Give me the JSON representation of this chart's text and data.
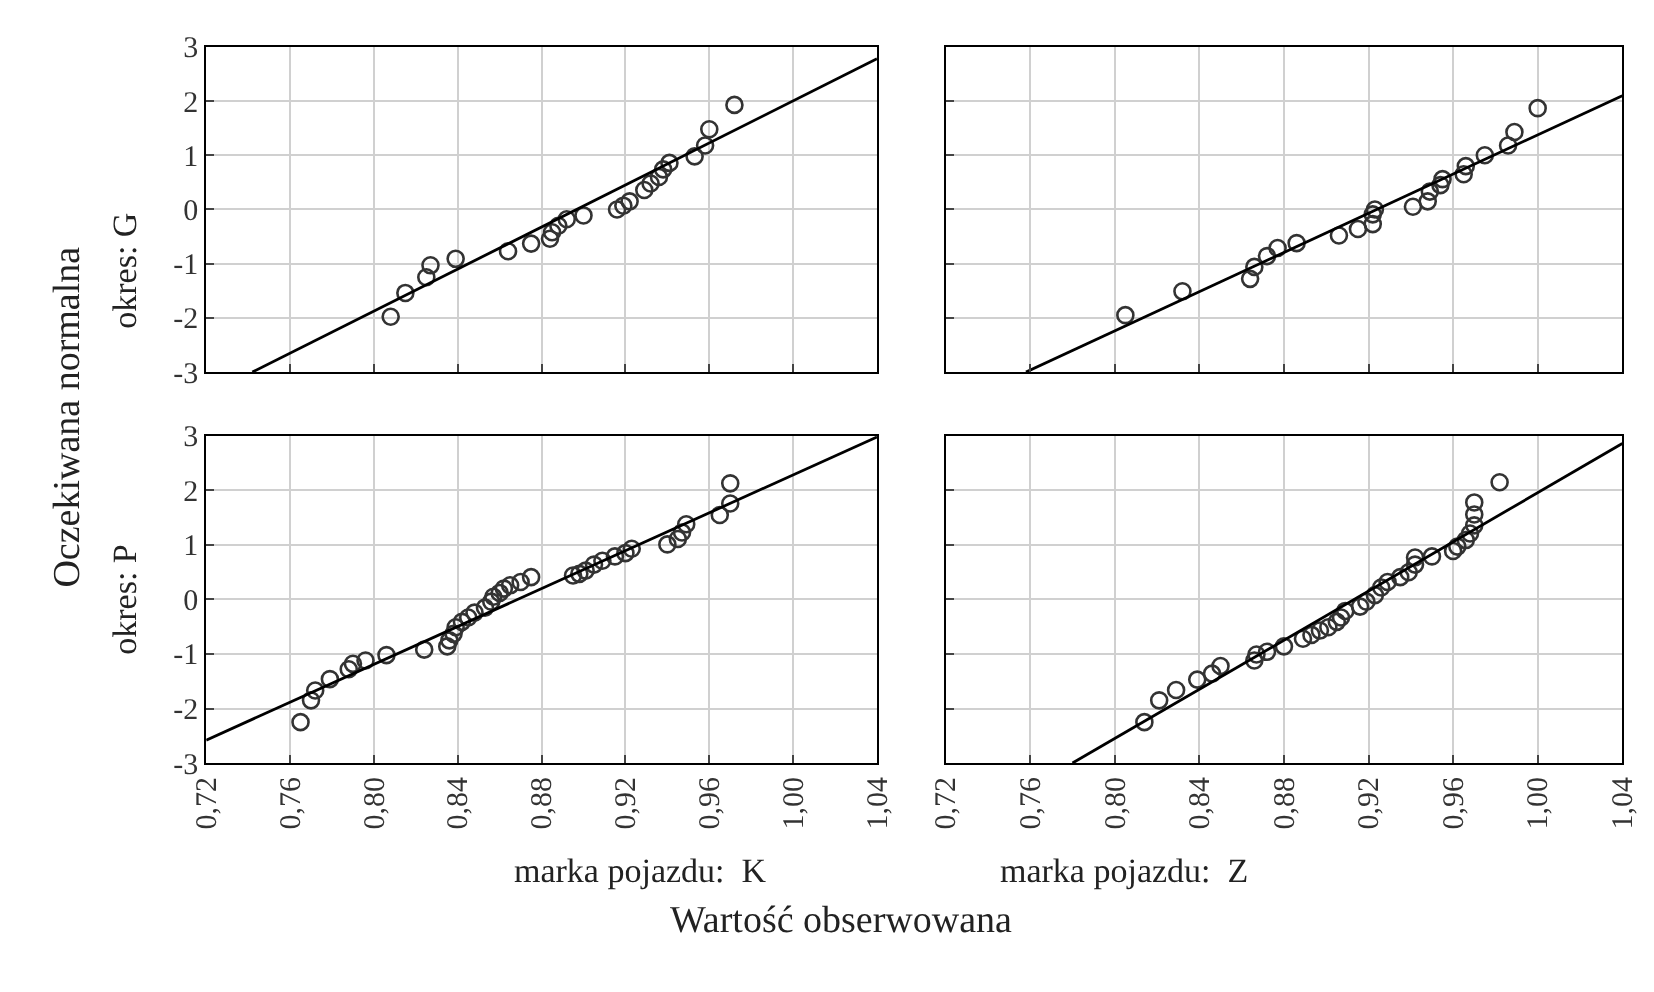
{
  "chart_data": [
    {
      "type": "scatter",
      "ylabel": "okres: G",
      "annotations": [
        "Oczekiwana normalna",
        "Wartość obserwowana"
      ],
      "xlim": [
        0.72,
        1.04
      ],
      "ylim": [
        -3,
        3
      ],
      "xticks": [
        {
          "value": 0.72,
          "label": null
        },
        {
          "value": 0.76,
          "label": null
        },
        {
          "value": 0.8,
          "label": null
        },
        {
          "value": 0.84,
          "label": null
        },
        {
          "value": 0.88,
          "label": null
        },
        {
          "value": 0.92,
          "label": null
        },
        {
          "value": 0.96,
          "label": null
        },
        {
          "value": 1.0,
          "label": null
        },
        {
          "value": 1.04,
          "label": null
        }
      ],
      "yticks": [
        -3,
        -2,
        -1,
        0,
        1,
        2,
        3
      ],
      "tick_labels": "y",
      "grid": true,
      "line_style": "solid",
      "series": [
        {
          "marker": "circle",
          "color": "#333333",
          "x": [
            0.808,
            0.815,
            0.825,
            0.827,
            0.839,
            0.864,
            0.875,
            0.884,
            0.885,
            0.888,
            0.892,
            0.9,
            0.916,
            0.919,
            0.922,
            0.929,
            0.932,
            0.936,
            0.938,
            0.941,
            0.953,
            0.958,
            0.96,
            0.972
          ],
          "values": [
            -1.98,
            -1.54,
            -1.25,
            -1.03,
            -0.91,
            -0.77,
            -0.63,
            -0.54,
            -0.42,
            -0.3,
            -0.18,
            -0.11,
            0.0,
            0.07,
            0.15,
            0.36,
            0.48,
            0.6,
            0.74,
            0.86,
            0.98,
            1.18,
            1.48,
            1.93
          ]
        },
        {
          "type": "line",
          "marker": "none",
          "color": "#000000",
          "x": [
            0.742,
            1.04
          ],
          "values": [
            -3,
            2.78
          ]
        }
      ]
    },
    {
      "type": "scatter",
      "xlim": [
        0.72,
        1.04
      ],
      "ylim": [
        -3,
        3
      ],
      "xticks": [
        {
          "value": 0.72,
          "label": null
        },
        {
          "value": 0.76,
          "label": null
        },
        {
          "value": 0.8,
          "label": null
        },
        {
          "value": 0.84,
          "label": null
        },
        {
          "value": 0.88,
          "label": null
        },
        {
          "value": 0.92,
          "label": null
        },
        {
          "value": 0.96,
          "label": null
        },
        {
          "value": 1.0,
          "label": null
        },
        {
          "value": 1.04,
          "label": null
        }
      ],
      "yticks": [
        -3,
        -2,
        -1,
        0,
        1,
        2,
        3
      ],
      "tick_labels": false,
      "grid": true,
      "line_style": "solid",
      "series": [
        {
          "marker": "circle",
          "color": "#333333",
          "x": [
            0.805,
            0.832,
            0.864,
            0.866,
            0.872,
            0.877,
            0.886,
            0.906,
            0.915,
            0.922,
            0.922,
            0.923,
            0.941,
            0.948,
            0.949,
            0.954,
            0.955,
            0.965,
            0.966,
            0.975,
            0.986,
            0.989,
            1.0
          ],
          "values": [
            -1.95,
            -1.51,
            -1.28,
            -1.06,
            -0.86,
            -0.71,
            -0.62,
            -0.48,
            -0.36,
            -0.27,
            -0.09,
            0.0,
            0.05,
            0.15,
            0.33,
            0.45,
            0.56,
            0.65,
            0.8,
            1.0,
            1.18,
            1.43,
            1.87
          ]
        },
        {
          "type": "line",
          "marker": "none",
          "color": "#000000",
          "x": [
            0.758,
            1.04
          ],
          "values": [
            -3,
            2.1
          ]
        }
      ]
    },
    {
      "type": "scatter",
      "ylabel": "okres: P",
      "xlabel": "marka pojazdu:  K",
      "xlim": [
        0.72,
        1.04
      ],
      "ylim": [
        -3,
        3
      ],
      "xticks": [
        {
          "value": 0.72,
          "label": "0,72"
        },
        {
          "value": 0.76,
          "label": "0,76"
        },
        {
          "value": 0.8,
          "label": "0,80"
        },
        {
          "value": 0.84,
          "label": "0,84"
        },
        {
          "value": 0.88,
          "label": "0,88"
        },
        {
          "value": 0.92,
          "label": "0,92"
        },
        {
          "value": 0.96,
          "label": "0,96"
        },
        {
          "value": 1.0,
          "label": "1,00"
        },
        {
          "value": 1.04,
          "label": "1,04"
        }
      ],
      "yticks": [
        -3,
        -2,
        -1,
        0,
        1,
        2,
        3
      ],
      "grid": true,
      "line_style": "solid",
      "series": [
        {
          "marker": "circle",
          "color": "#333333",
          "x": [
            0.765,
            0.77,
            0.772,
            0.779,
            0.788,
            0.79,
            0.796,
            0.806,
            0.824,
            0.835,
            0.836,
            0.838,
            0.839,
            0.842,
            0.845,
            0.848,
            0.853,
            0.856,
            0.857,
            0.86,
            0.862,
            0.865,
            0.87,
            0.875,
            0.895,
            0.898,
            0.901,
            0.905,
            0.909,
            0.915,
            0.92,
            0.923,
            0.94,
            0.945,
            0.947,
            0.949,
            0.965,
            0.97,
            0.97
          ],
          "values": [
            -2.25,
            -1.85,
            -1.67,
            -1.46,
            -1.28,
            -1.18,
            -1.12,
            -1.02,
            -0.92,
            -0.86,
            -0.75,
            -0.63,
            -0.51,
            -0.41,
            -0.33,
            -0.24,
            -0.15,
            -0.04,
            0.05,
            0.12,
            0.2,
            0.26,
            0.32,
            0.41,
            0.44,
            0.47,
            0.53,
            0.64,
            0.71,
            0.79,
            0.85,
            0.93,
            1.01,
            1.11,
            1.23,
            1.38,
            1.55,
            1.76,
            2.13
          ]
        },
        {
          "type": "line",
          "marker": "none",
          "color": "#000000",
          "x": [
            0.72,
            1.04
          ],
          "values": [
            -2.58,
            2.98
          ]
        }
      ]
    },
    {
      "type": "scatter",
      "xlabel": "marka pojazdu:  Z",
      "xlim": [
        0.72,
        1.04
      ],
      "ylim": [
        -3,
        3
      ],
      "xticks": [
        {
          "value": 0.72,
          "label": "0,72"
        },
        {
          "value": 0.76,
          "label": "0,76"
        },
        {
          "value": 0.8,
          "label": "0,80"
        },
        {
          "value": 0.84,
          "label": "0,84"
        },
        {
          "value": 0.88,
          "label": "0,88"
        },
        {
          "value": 0.92,
          "label": "0,92"
        },
        {
          "value": 0.96,
          "label": "0,96"
        },
        {
          "value": 1.0,
          "label": "1,00"
        },
        {
          "value": 1.04,
          "label": "1,04"
        }
      ],
      "yticks": [
        -3,
        -2,
        -1,
        0,
        1,
        2,
        3
      ],
      "tick_labels": "x",
      "grid": true,
      "line_style": "solid",
      "series": [
        {
          "marker": "circle",
          "color": "#333333",
          "x": [
            0.814,
            0.821,
            0.829,
            0.839,
            0.846,
            0.85,
            0.866,
            0.867,
            0.872,
            0.88,
            0.889,
            0.893,
            0.897,
            0.901,
            0.905,
            0.907,
            0.909,
            0.916,
            0.919,
            0.923,
            0.926,
            0.929,
            0.935,
            0.939,
            0.942,
            0.942,
            0.95,
            0.96,
            0.962,
            0.966,
            0.968,
            0.97,
            0.97,
            0.97,
            0.982
          ],
          "values": [
            -2.25,
            -1.85,
            -1.66,
            -1.47,
            -1.36,
            -1.22,
            -1.12,
            -1.01,
            -0.96,
            -0.86,
            -0.72,
            -0.65,
            -0.57,
            -0.51,
            -0.41,
            -0.33,
            -0.21,
            -0.13,
            -0.04,
            0.08,
            0.22,
            0.32,
            0.41,
            0.5,
            0.64,
            0.77,
            0.79,
            0.89,
            0.97,
            1.09,
            1.21,
            1.36,
            1.56,
            1.78,
            2.15
          ]
        },
        {
          "type": "line",
          "marker": "none",
          "color": "#000000",
          "x": [
            0.78,
            1.04
          ],
          "values": [
            -3,
            2.86
          ]
        }
      ]
    }
  ]
}
